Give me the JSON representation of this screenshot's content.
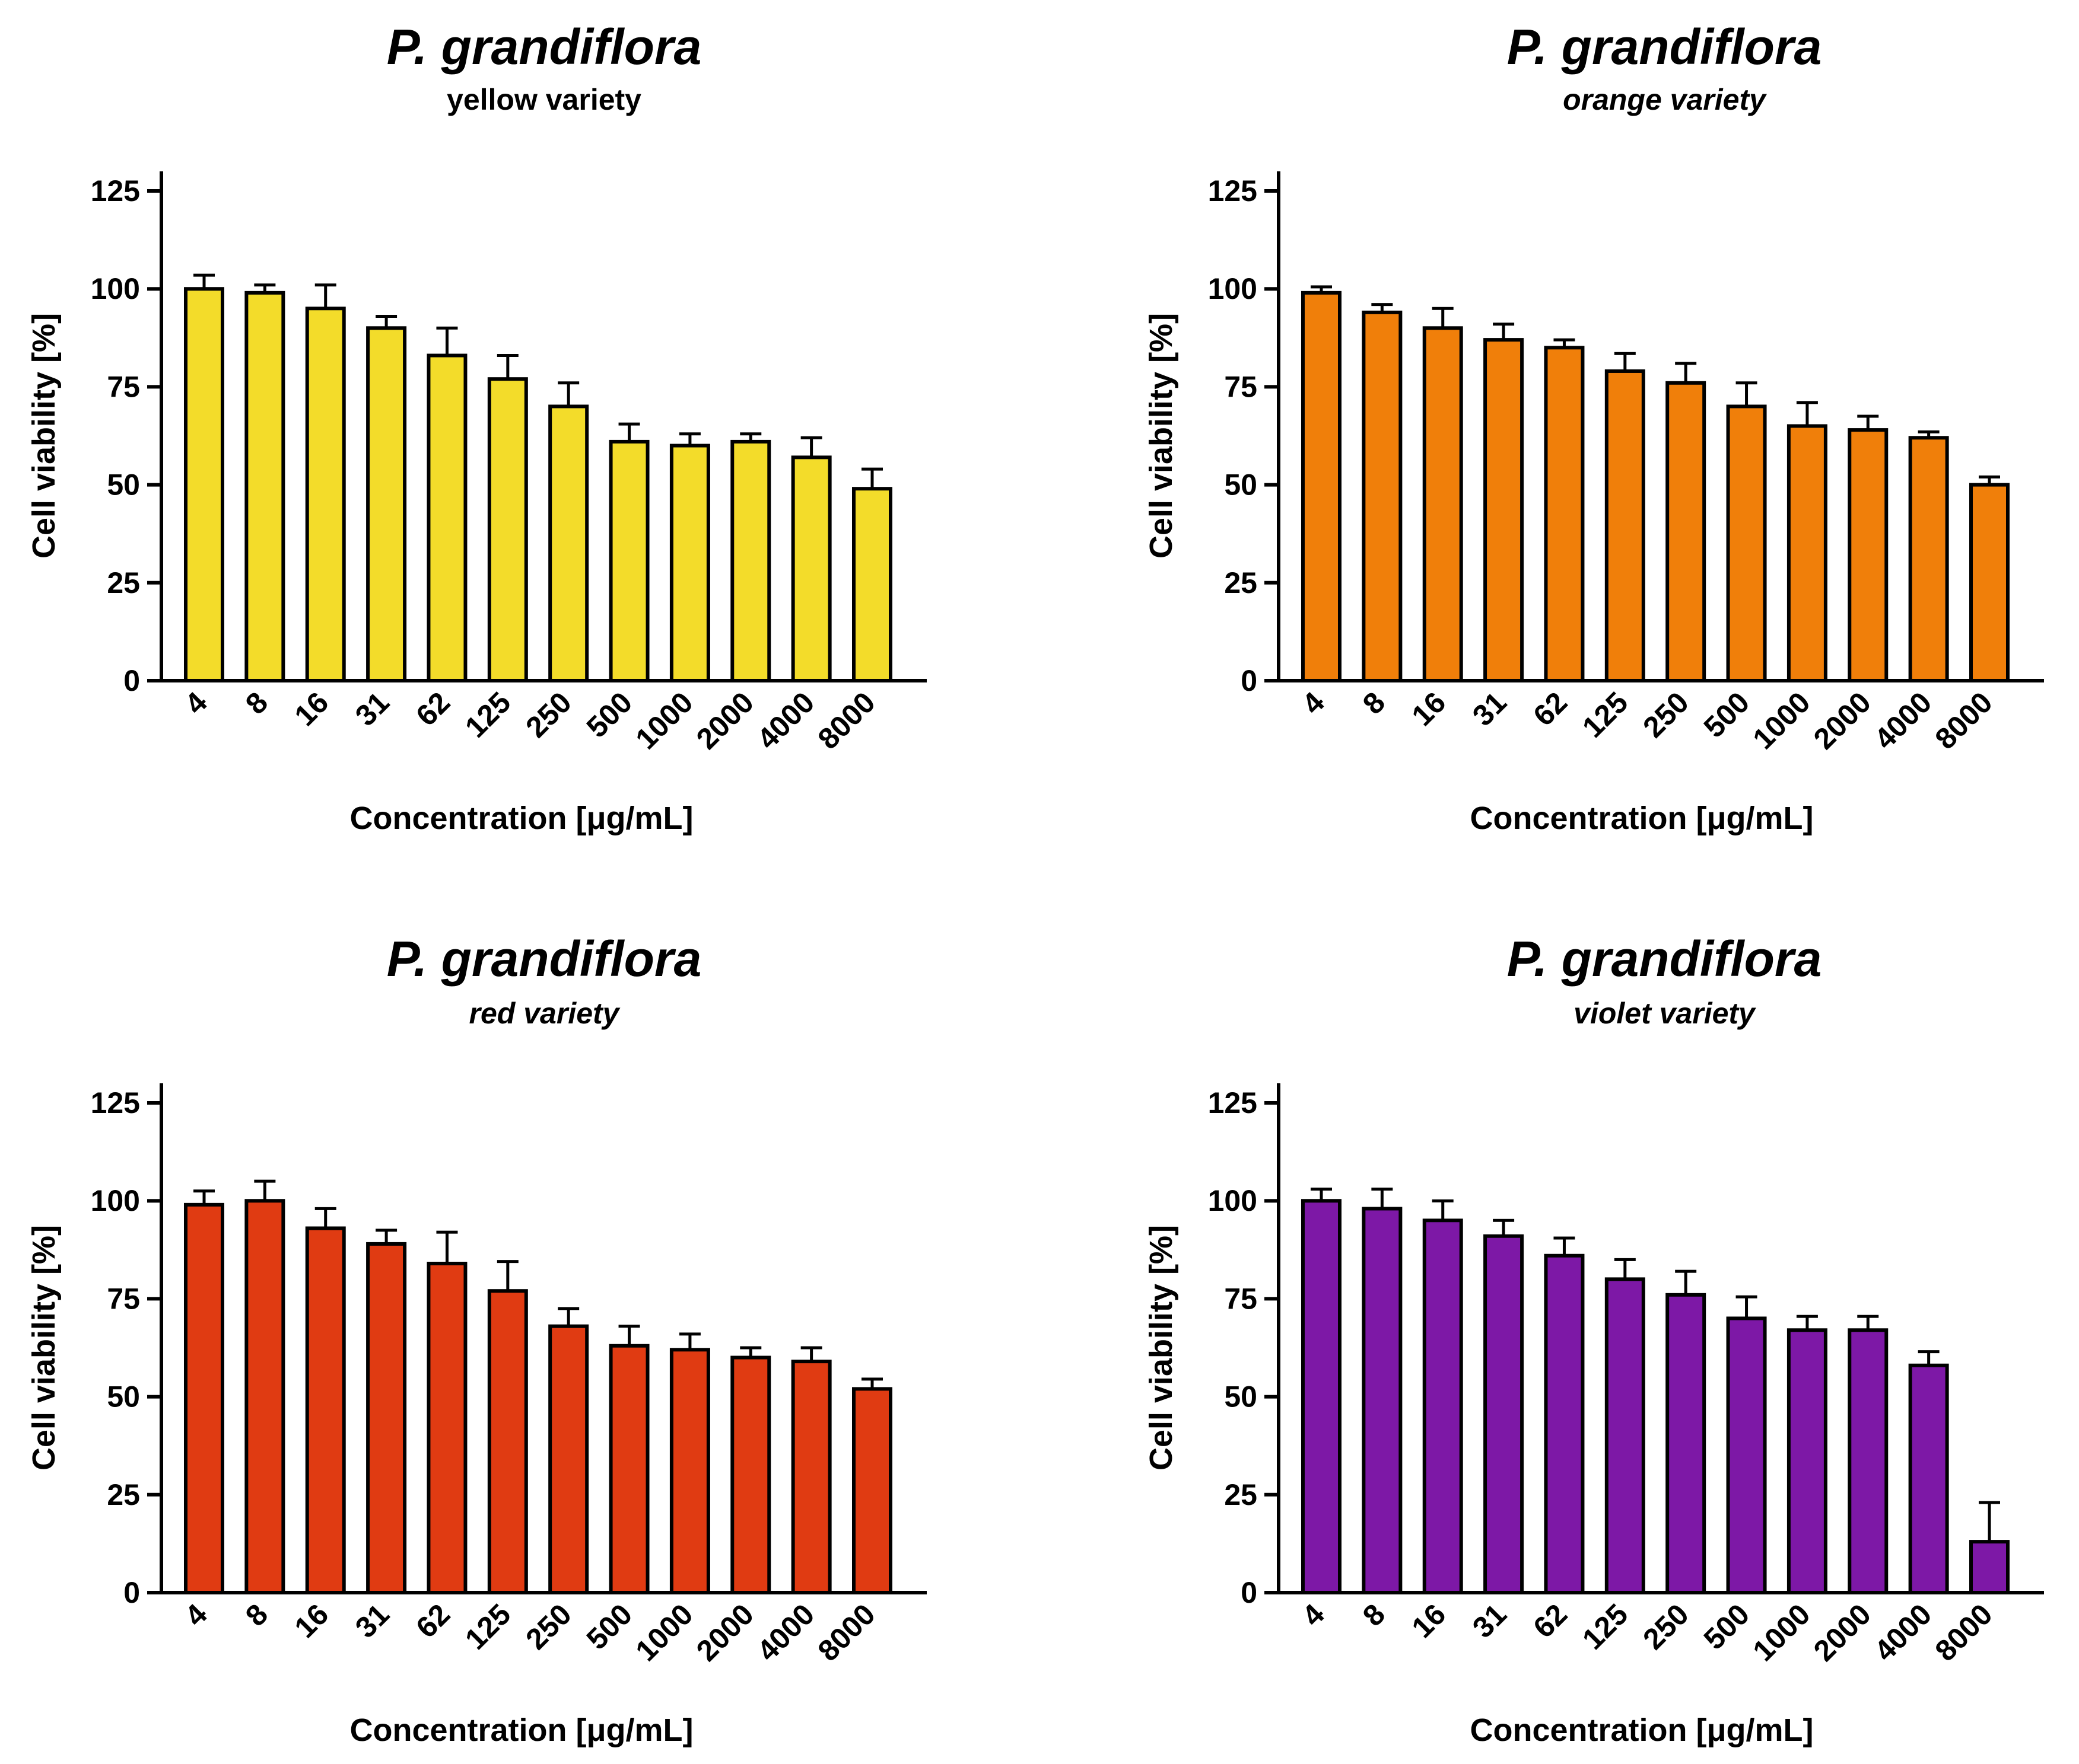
{
  "chart_data": [
    {
      "type": "bar",
      "title": "P. grandiflora",
      "subtitle": "yellow variety",
      "subtitle_italic": false,
      "bar_color": "#f3dc2a",
      "categories": [
        "4",
        "8",
        "16",
        "31",
        "62",
        "125",
        "250",
        "500",
        "1000",
        "2000",
        "4000",
        "8000"
      ],
      "values": [
        100,
        99,
        95,
        90,
        83,
        77,
        70,
        61,
        60,
        61,
        57,
        49
      ],
      "errors": [
        3.5,
        2,
        6,
        3,
        7,
        6,
        6,
        4.5,
        3,
        2,
        5,
        5
      ],
      "xlabel": "Concentration [μg/mL]",
      "ylabel": "Cell viability [%]",
      "ylim": [
        0,
        130
      ],
      "yticks": [
        0,
        25,
        50,
        75,
        100,
        125
      ]
    },
    {
      "type": "bar",
      "title": "P. grandiflora",
      "subtitle": "orange variety",
      "subtitle_italic": true,
      "bar_color": "#f07f0a",
      "categories": [
        "4",
        "8",
        "16",
        "31",
        "62",
        "125",
        "250",
        "500",
        "1000",
        "2000",
        "4000",
        "8000"
      ],
      "values": [
        99,
        94,
        90,
        87,
        85,
        79,
        76,
        70,
        65,
        64,
        62,
        50
      ],
      "errors": [
        1.5,
        2,
        5,
        4,
        2,
        4.5,
        5,
        6,
        6,
        3.5,
        1.5,
        2
      ],
      "xlabel": "Concentration [μg/mL]",
      "ylabel": "Cell viability [%]",
      "ylim": [
        0,
        130
      ],
      "yticks": [
        0,
        25,
        50,
        75,
        100,
        125
      ]
    },
    {
      "type": "bar",
      "title": "P. grandiflora",
      "subtitle": "red variety",
      "subtitle_italic": true,
      "bar_color": "#e03b12",
      "categories": [
        "4",
        "8",
        "16",
        "31",
        "62",
        "125",
        "250",
        "500",
        "1000",
        "2000",
        "4000",
        "8000"
      ],
      "values": [
        99,
        100,
        93,
        89,
        84,
        77,
        68,
        63,
        62,
        60,
        59,
        52
      ],
      "errors": [
        3.5,
        5,
        5,
        3.5,
        8,
        7.5,
        4.5,
        5,
        4,
        2.5,
        3.5,
        2.5
      ],
      "xlabel": "Concentration [μg/mL]",
      "ylabel": "Cell viability [%]",
      "ylim": [
        0,
        130
      ],
      "yticks": [
        0,
        25,
        50,
        75,
        100,
        125
      ]
    },
    {
      "type": "bar",
      "title": "P. grandiflora",
      "subtitle": "violet variety",
      "subtitle_italic": true,
      "bar_color": "#7d18a6",
      "categories": [
        "4",
        "8",
        "16",
        "31",
        "62",
        "125",
        "250",
        "500",
        "1000",
        "2000",
        "4000",
        "8000"
      ],
      "values": [
        100,
        98,
        95,
        91,
        86,
        80,
        76,
        70,
        67,
        67,
        58,
        13
      ],
      "errors": [
        3,
        5,
        5,
        4,
        4.5,
        5,
        6,
        5.5,
        3.5,
        3.5,
        3.5,
        10
      ],
      "xlabel": "Concentration [μg/mL]",
      "ylabel": "Cell viability [%]",
      "ylim": [
        0,
        130
      ],
      "yticks": [
        0,
        25,
        50,
        75,
        100,
        125
      ]
    }
  ]
}
